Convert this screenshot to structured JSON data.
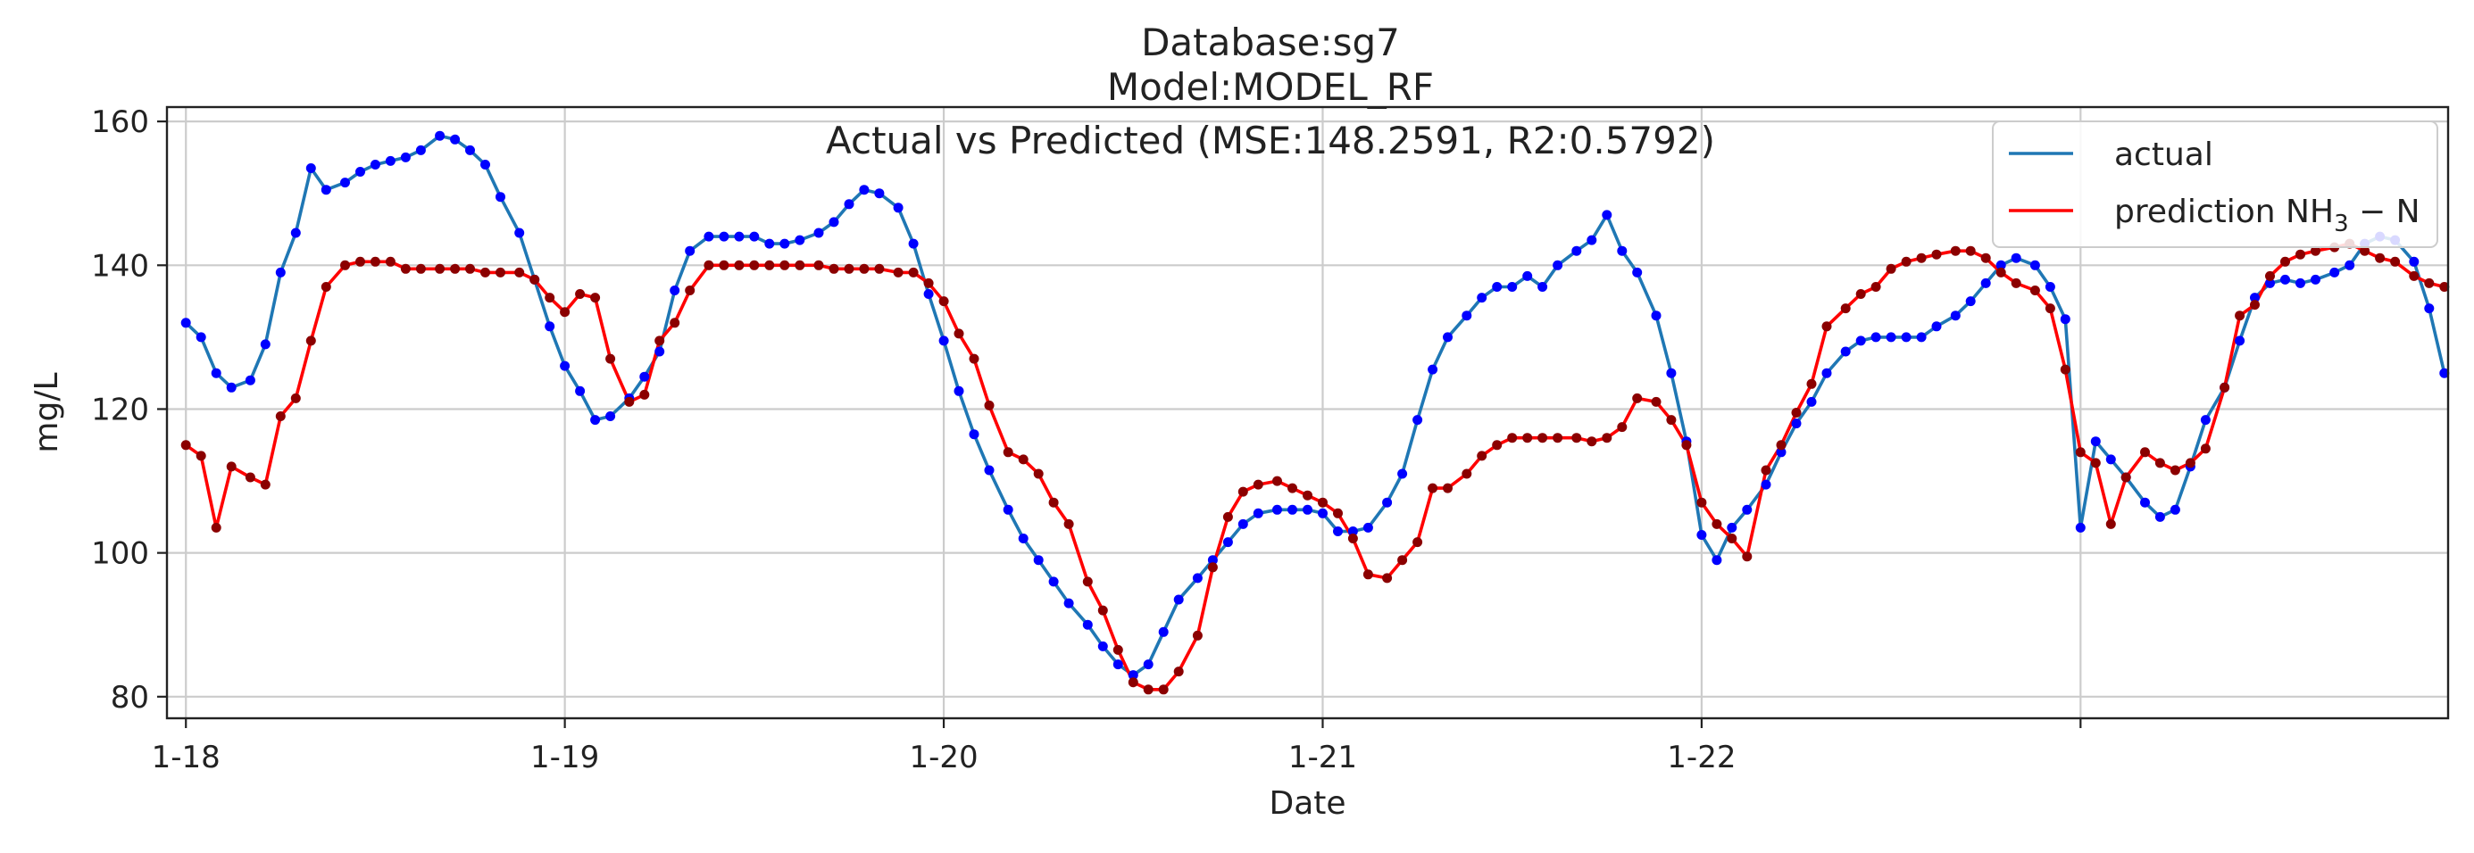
{
  "chart_data": {
    "type": "line",
    "title_lines": [
      "Database:sg7",
      "Model:MODEL_RF",
      "Actual vs Predicted (MSE:148.2591, R2:0.5792)"
    ],
    "xlabel": "Date",
    "ylabel": "mg/L",
    "x_tick_labels": [
      "1-18",
      "1-19",
      "1-20",
      "1-21",
      "1-22",
      ""
    ],
    "x_tick_positions_days": [
      0,
      1,
      2,
      3,
      4,
      5
    ],
    "x_range_days": [
      -0.05,
      5.97
    ],
    "y_range": [
      77,
      162
    ],
    "y_ticks": [
      80,
      100,
      120,
      140,
      160
    ],
    "grid": true,
    "legend_position": "upper right",
    "legend": [
      {
        "label": "actual",
        "color": "#1f77b4"
      },
      {
        "label_prefix": "prediction NH",
        "label_sub": "3",
        "label_suffix": " − N",
        "color": "#ff0000"
      }
    ],
    "colors": {
      "actual_line": "#1f77b4",
      "prediction_line": "#ff0000",
      "actual_points": "#0000ff",
      "prediction_points": "#8b0000"
    },
    "x_step_days": 0.04167,
    "series": [
      {
        "name": "actual",
        "color": "#1f77b4",
        "points": [
          [
            0.0,
            132
          ],
          [
            0.04,
            130
          ],
          [
            0.08,
            125
          ],
          [
            0.12,
            123
          ],
          [
            0.17,
            124
          ],
          [
            0.21,
            129
          ],
          [
            0.25,
            139
          ],
          [
            0.29,
            144.5
          ],
          [
            0.33,
            153.5
          ],
          [
            0.37,
            150.5
          ],
          [
            0.42,
            151.5
          ],
          [
            0.46,
            153
          ],
          [
            0.5,
            154
          ],
          [
            0.54,
            154.5
          ],
          [
            0.58,
            155
          ],
          [
            0.62,
            156
          ],
          [
            0.67,
            158
          ],
          [
            0.71,
            157.5
          ],
          [
            0.75,
            156
          ],
          [
            0.79,
            154
          ],
          [
            0.83,
            149.5
          ],
          [
            0.88,
            144.5
          ],
          [
            0.92,
            138
          ],
          [
            0.96,
            131.5
          ],
          [
            1.0,
            126
          ],
          [
            1.04,
            122.5
          ],
          [
            1.08,
            118.5
          ],
          [
            1.12,
            119
          ],
          [
            1.17,
            121.5
          ],
          [
            1.21,
            124.5
          ],
          [
            1.25,
            128
          ],
          [
            1.29,
            136.5
          ],
          [
            1.33,
            142
          ],
          [
            1.38,
            144
          ],
          [
            1.42,
            144
          ],
          [
            1.46,
            144
          ],
          [
            1.5,
            144
          ],
          [
            1.54,
            143
          ],
          [
            1.58,
            143
          ],
          [
            1.62,
            143.5
          ],
          [
            1.67,
            144.5
          ],
          [
            1.71,
            146
          ],
          [
            1.75,
            148.5
          ],
          [
            1.79,
            150.5
          ],
          [
            1.83,
            150
          ],
          [
            1.88,
            148
          ],
          [
            1.92,
            143
          ],
          [
            1.96,
            136
          ],
          [
            2.0,
            129.5
          ],
          [
            2.04,
            122.5
          ],
          [
            2.08,
            116.5
          ],
          [
            2.12,
            111.5
          ],
          [
            2.17,
            106
          ],
          [
            2.21,
            102
          ],
          [
            2.25,
            99
          ],
          [
            2.29,
            96
          ],
          [
            2.33,
            93
          ],
          [
            2.38,
            90
          ],
          [
            2.42,
            87
          ],
          [
            2.46,
            84.5
          ],
          [
            2.5,
            83
          ],
          [
            2.54,
            84.5
          ],
          [
            2.58,
            89
          ],
          [
            2.62,
            93.5
          ],
          [
            2.67,
            96.5
          ],
          [
            2.71,
            99
          ],
          [
            2.75,
            101.5
          ],
          [
            2.79,
            104
          ],
          [
            2.83,
            105.5
          ],
          [
            2.88,
            106
          ],
          [
            2.92,
            106
          ],
          [
            2.96,
            106
          ],
          [
            3.0,
            105.5
          ],
          [
            3.04,
            103
          ],
          [
            3.08,
            103
          ],
          [
            3.12,
            103.5
          ],
          [
            3.17,
            107
          ],
          [
            3.21,
            111
          ],
          [
            3.25,
            118.5
          ],
          [
            3.29,
            125.5
          ],
          [
            3.33,
            130
          ],
          [
            3.38,
            133
          ],
          [
            3.42,
            135.5
          ],
          [
            3.46,
            137
          ],
          [
            3.5,
            137
          ],
          [
            3.54,
            138.5
          ],
          [
            3.58,
            137
          ],
          [
            3.62,
            140
          ],
          [
            3.67,
            142
          ],
          [
            3.71,
            143.5
          ],
          [
            3.75,
            147
          ],
          [
            3.79,
            142
          ],
          [
            3.83,
            139
          ],
          [
            3.88,
            133
          ],
          [
            3.92,
            125
          ],
          [
            3.96,
            115.5
          ],
          [
            4.0,
            102.5
          ],
          [
            4.04,
            99
          ],
          [
            4.08,
            103.5
          ],
          [
            4.12,
            106
          ],
          [
            4.17,
            109.5
          ],
          [
            4.21,
            114
          ],
          [
            4.25,
            118
          ],
          [
            4.29,
            121
          ],
          [
            4.33,
            125
          ],
          [
            4.38,
            128
          ],
          [
            4.42,
            129.5
          ],
          [
            4.46,
            130
          ],
          [
            4.5,
            130
          ],
          [
            4.54,
            130
          ],
          [
            4.58,
            130
          ],
          [
            4.62,
            131.5
          ],
          [
            4.67,
            133
          ],
          [
            4.71,
            135
          ],
          [
            4.75,
            137.5
          ],
          [
            4.79,
            140
          ],
          [
            4.83,
            141
          ],
          [
            4.88,
            140
          ],
          [
            4.92,
            137
          ],
          [
            4.96,
            132.5
          ],
          [
            5.0,
            103.5
          ],
          [
            5.04,
            115.5
          ],
          [
            5.08,
            113
          ],
          [
            5.12,
            110.5
          ],
          [
            5.17,
            107
          ],
          [
            5.21,
            105
          ],
          [
            5.25,
            106
          ],
          [
            5.29,
            112
          ],
          [
            5.33,
            118.5
          ],
          [
            5.38,
            123
          ],
          [
            5.42,
            129.5
          ],
          [
            5.46,
            135.5
          ],
          [
            5.5,
            137.5
          ],
          [
            5.54,
            138
          ],
          [
            5.58,
            137.5
          ],
          [
            5.62,
            138
          ],
          [
            5.67,
            139
          ],
          [
            5.71,
            140
          ],
          [
            5.75,
            143
          ],
          [
            5.79,
            144
          ],
          [
            5.83,
            143.5
          ],
          [
            5.88,
            140.5
          ],
          [
            5.92,
            134
          ],
          [
            5.96,
            125
          ]
        ]
      },
      {
        "name": "prediction NH3 − N",
        "color": "#ff0000",
        "points": [
          [
            0.0,
            115
          ],
          [
            0.04,
            113.5
          ],
          [
            0.08,
            103.5
          ],
          [
            0.12,
            112
          ],
          [
            0.17,
            110.5
          ],
          [
            0.21,
            109.5
          ],
          [
            0.25,
            119
          ],
          [
            0.29,
            121.5
          ],
          [
            0.33,
            129.5
          ],
          [
            0.37,
            137
          ],
          [
            0.42,
            140
          ],
          [
            0.46,
            140.5
          ],
          [
            0.5,
            140.5
          ],
          [
            0.54,
            140.5
          ],
          [
            0.58,
            139.5
          ],
          [
            0.62,
            139.5
          ],
          [
            0.67,
            139.5
          ],
          [
            0.71,
            139.5
          ],
          [
            0.75,
            139.5
          ],
          [
            0.79,
            139
          ],
          [
            0.83,
            139
          ],
          [
            0.88,
            139
          ],
          [
            0.92,
            138
          ],
          [
            0.96,
            135.5
          ],
          [
            1.0,
            133.5
          ],
          [
            1.04,
            136
          ],
          [
            1.08,
            135.5
          ],
          [
            1.12,
            127
          ],
          [
            1.17,
            121
          ],
          [
            1.21,
            122
          ],
          [
            1.25,
            129.5
          ],
          [
            1.29,
            132
          ],
          [
            1.33,
            136.5
          ],
          [
            1.38,
            140
          ],
          [
            1.42,
            140
          ],
          [
            1.46,
            140
          ],
          [
            1.5,
            140
          ],
          [
            1.54,
            140
          ],
          [
            1.58,
            140
          ],
          [
            1.62,
            140
          ],
          [
            1.67,
            140
          ],
          [
            1.71,
            139.5
          ],
          [
            1.75,
            139.5
          ],
          [
            1.79,
            139.5
          ],
          [
            1.83,
            139.5
          ],
          [
            1.88,
            139
          ],
          [
            1.92,
            139
          ],
          [
            1.96,
            137.5
          ],
          [
            2.0,
            135
          ],
          [
            2.04,
            130.5
          ],
          [
            2.08,
            127
          ],
          [
            2.12,
            120.5
          ],
          [
            2.17,
            114
          ],
          [
            2.21,
            113
          ],
          [
            2.25,
            111
          ],
          [
            2.29,
            107
          ],
          [
            2.33,
            104
          ],
          [
            2.38,
            96
          ],
          [
            2.42,
            92
          ],
          [
            2.46,
            86.5
          ],
          [
            2.5,
            82
          ],
          [
            2.54,
            81
          ],
          [
            2.58,
            81
          ],
          [
            2.62,
            83.5
          ],
          [
            2.67,
            88.5
          ],
          [
            2.71,
            98
          ],
          [
            2.75,
            105
          ],
          [
            2.79,
            108.5
          ],
          [
            2.83,
            109.5
          ],
          [
            2.88,
            110
          ],
          [
            2.92,
            109
          ],
          [
            2.96,
            108
          ],
          [
            3.0,
            107
          ],
          [
            3.04,
            105.5
          ],
          [
            3.08,
            102
          ],
          [
            3.12,
            97
          ],
          [
            3.17,
            96.5
          ],
          [
            3.21,
            99
          ],
          [
            3.25,
            101.5
          ],
          [
            3.29,
            109
          ],
          [
            3.33,
            109
          ],
          [
            3.38,
            111
          ],
          [
            3.42,
            113.5
          ],
          [
            3.46,
            115
          ],
          [
            3.5,
            116
          ],
          [
            3.54,
            116
          ],
          [
            3.58,
            116
          ],
          [
            3.62,
            116
          ],
          [
            3.67,
            116
          ],
          [
            3.71,
            115.5
          ],
          [
            3.75,
            116
          ],
          [
            3.79,
            117.5
          ],
          [
            3.83,
            121.5
          ],
          [
            3.88,
            121
          ],
          [
            3.92,
            118.5
          ],
          [
            3.96,
            115
          ],
          [
            4.0,
            107
          ],
          [
            4.04,
            104
          ],
          [
            4.08,
            102
          ],
          [
            4.12,
            99.5
          ],
          [
            4.17,
            111.5
          ],
          [
            4.21,
            115
          ],
          [
            4.25,
            119.5
          ],
          [
            4.29,
            123.5
          ],
          [
            4.33,
            131.5
          ],
          [
            4.38,
            134
          ],
          [
            4.42,
            136
          ],
          [
            4.46,
            137
          ],
          [
            4.5,
            139.5
          ],
          [
            4.54,
            140.5
          ],
          [
            4.58,
            141
          ],
          [
            4.62,
            141.5
          ],
          [
            4.67,
            142
          ],
          [
            4.71,
            142
          ],
          [
            4.75,
            141
          ],
          [
            4.79,
            139
          ],
          [
            4.83,
            137.5
          ],
          [
            4.88,
            136.5
          ],
          [
            4.92,
            134
          ],
          [
            4.96,
            125.5
          ],
          [
            5.0,
            114
          ],
          [
            5.04,
            112.5
          ],
          [
            5.08,
            104
          ],
          [
            5.12,
            110.5
          ],
          [
            5.17,
            114
          ],
          [
            5.21,
            112.5
          ],
          [
            5.25,
            111.5
          ],
          [
            5.29,
            112.5
          ],
          [
            5.33,
            114.5
          ],
          [
            5.38,
            123
          ],
          [
            5.42,
            133
          ],
          [
            5.46,
            134.5
          ],
          [
            5.5,
            138.5
          ],
          [
            5.54,
            140.5
          ],
          [
            5.58,
            141.5
          ],
          [
            5.62,
            142
          ],
          [
            5.67,
            142.5
          ],
          [
            5.71,
            143
          ],
          [
            5.75,
            142
          ],
          [
            5.79,
            141
          ],
          [
            5.83,
            140.5
          ],
          [
            5.88,
            138.5
          ],
          [
            5.92,
            137.5
          ],
          [
            5.96,
            137
          ]
        ]
      }
    ]
  }
}
